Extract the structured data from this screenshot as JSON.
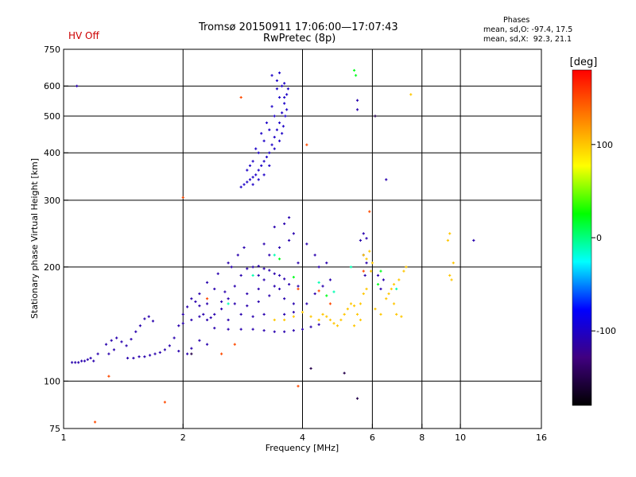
{
  "header": {
    "title_line1": "Tromsø 20150911 17:06:00—17:07:43",
    "title_line2": "RwPretec (8p)",
    "hv_status": "HV Off",
    "hv_color": "#cc0000"
  },
  "phases_info": {
    "title": "Phases",
    "line_o": "mean, sd,O: -97.4, 17.5",
    "line_x": "mean, sd,X:  92.3, 21.1"
  },
  "chart_data": {
    "type": "scatter",
    "xlabel": "Frequency [MHz]",
    "ylabel": "Stationary phase Virtual Height [km]",
    "x_scale": "log",
    "y_scale": "log",
    "xlim": [
      1,
      16
    ],
    "ylim": [
      75,
      750
    ],
    "x_ticks": [
      1,
      2,
      4,
      6,
      8,
      10,
      16
    ],
    "y_ticks": [
      75,
      100,
      200,
      300,
      400,
      500,
      600,
      750
    ],
    "x_grid": [
      2,
      4,
      6,
      8,
      10
    ],
    "y_grid": [
      100,
      200,
      300,
      400,
      500,
      600
    ],
    "grid": true,
    "colorbar": {
      "label": "[deg]",
      "range": [
        -180,
        180
      ],
      "ticks": [
        100,
        0,
        -100
      ],
      "stops": [
        "#ff0000",
        "#ff8000",
        "#ffff00",
        "#00ff00",
        "#00ffff",
        "#0000ff",
        "#400080",
        "#000000"
      ]
    },
    "series": [
      {
        "color_deg": -110,
        "points": [
          [
            1.05,
            112
          ],
          [
            1.07,
            112
          ],
          [
            1.09,
            112
          ],
          [
            1.11,
            113
          ],
          [
            1.13,
            113
          ],
          [
            1.15,
            114
          ],
          [
            1.17,
            115
          ],
          [
            1.19,
            113
          ],
          [
            1.22,
            118
          ],
          [
            1.28,
            125
          ],
          [
            1.32,
            128
          ],
          [
            1.36,
            130
          ],
          [
            1.4,
            127
          ],
          [
            1.44,
            124
          ],
          [
            1.48,
            129
          ],
          [
            1.52,
            135
          ],
          [
            1.56,
            140
          ],
          [
            1.6,
            146
          ],
          [
            1.64,
            148
          ],
          [
            1.68,
            144
          ],
          [
            1.3,
            118
          ],
          [
            1.34,
            121
          ],
          [
            1.45,
            115
          ],
          [
            1.5,
            115
          ],
          [
            1.55,
            116
          ],
          [
            1.6,
            116
          ],
          [
            1.65,
            117
          ],
          [
            1.7,
            118
          ],
          [
            1.75,
            119
          ],
          [
            1.8,
            121
          ],
          [
            1.85,
            124
          ],
          [
            1.9,
            130
          ],
          [
            1.95,
            140
          ],
          [
            2.0,
            150
          ],
          [
            2.05,
            157
          ],
          [
            2.1,
            165
          ],
          [
            2.15,
            162
          ],
          [
            2.2,
            158
          ],
          [
            2.25,
            150
          ],
          [
            2.3,
            145
          ],
          [
            2.35,
            147
          ],
          [
            2.4,
            150
          ],
          [
            2.5,
            155
          ],
          [
            2.6,
            165
          ],
          [
            2.7,
            178
          ],
          [
            2.8,
            190
          ],
          [
            2.9,
            198
          ],
          [
            3.0,
            200
          ],
          [
            3.1,
            201
          ],
          [
            3.2,
            198
          ],
          [
            3.3,
            196
          ],
          [
            3.4,
            192
          ],
          [
            3.5,
            190
          ],
          [
            3.6,
            186
          ],
          [
            2.4,
            138
          ],
          [
            2.6,
            137
          ],
          [
            2.8,
            137
          ],
          [
            3.0,
            137
          ],
          [
            3.2,
            136
          ],
          [
            3.4,
            135
          ],
          [
            3.6,
            135
          ],
          [
            3.8,
            136
          ],
          [
            4.0,
            137
          ],
          [
            4.2,
            139
          ],
          [
            4.4,
            141
          ],
          [
            2.5,
            162
          ],
          [
            2.7,
            160
          ],
          [
            2.9,
            158
          ],
          [
            3.1,
            162
          ],
          [
            3.3,
            168
          ],
          [
            3.5,
            175
          ],
          [
            3.7,
            180
          ],
          [
            3.9,
            178
          ],
          [
            2.2,
            128
          ],
          [
            2.3,
            125
          ],
          [
            2.1,
            122
          ],
          [
            1.95,
            120
          ],
          [
            2.05,
            118
          ],
          [
            2.2,
            170
          ],
          [
            2.3,
            182
          ],
          [
            2.45,
            192
          ],
          [
            2.6,
            205
          ],
          [
            2.75,
            215
          ],
          [
            2.85,
            225
          ],
          [
            2.65,
            200
          ],
          [
            2.55,
            172
          ],
          [
            3.2,
            185
          ],
          [
            3.4,
            178
          ],
          [
            3.6,
            165
          ],
          [
            3.8,
            160
          ],
          [
            3.3,
            215
          ],
          [
            3.5,
            225
          ],
          [
            3.7,
            235
          ],
          [
            3.8,
            245
          ],
          [
            3.2,
            230
          ],
          [
            3.4,
            255
          ],
          [
            3.6,
            260
          ],
          [
            3.7,
            270
          ],
          [
            5.6,
            235
          ],
          [
            5.7,
            245
          ],
          [
            5.8,
            238
          ],
          [
            5.7,
            215
          ],
          [
            5.8,
            205
          ],
          [
            5.75,
            190
          ],
          [
            6.2,
            190
          ],
          [
            6.4,
            185
          ],
          [
            6.3,
            175
          ],
          [
            3.6,
            150
          ],
          [
            3.8,
            152
          ],
          [
            4.1,
            160
          ],
          [
            4.3,
            170
          ],
          [
            4.5,
            178
          ],
          [
            4.7,
            185
          ],
          [
            4.4,
            200
          ],
          [
            4.6,
            205
          ],
          [
            2.0,
            142
          ],
          [
            2.1,
            145
          ],
          [
            2.2,
            148
          ],
          [
            3.0,
            148
          ],
          [
            3.2,
            150
          ],
          [
            2.9,
            170
          ],
          [
            3.1,
            175
          ],
          [
            4.3,
            215
          ],
          [
            4.1,
            230
          ],
          [
            3.9,
            205
          ],
          [
            3.1,
            190
          ],
          [
            2.8,
            150
          ],
          [
            2.6,
            145
          ],
          [
            2.4,
            175
          ],
          [
            2.3,
            160
          ],
          [
            6.5,
            340
          ],
          [
            5.5,
            520
          ],
          [
            5.5,
            550
          ],
          [
            10.8,
            235
          ],
          [
            1.08,
            600
          ]
        ]
      },
      {
        "color_deg": -100,
        "points": [
          [
            2.8,
            325
          ],
          [
            2.85,
            330
          ],
          [
            2.9,
            335
          ],
          [
            2.95,
            340
          ],
          [
            3.0,
            345
          ],
          [
            3.05,
            350
          ],
          [
            3.1,
            360
          ],
          [
            3.15,
            370
          ],
          [
            3.2,
            380
          ],
          [
            3.25,
            390
          ],
          [
            3.3,
            400
          ],
          [
            3.35,
            420
          ],
          [
            3.4,
            440
          ],
          [
            3.45,
            460
          ],
          [
            3.5,
            480
          ],
          [
            3.55,
            510
          ],
          [
            3.6,
            540
          ],
          [
            3.65,
            570
          ],
          [
            3.68,
            590
          ],
          [
            2.9,
            360
          ],
          [
            3.0,
            380
          ],
          [
            3.1,
            400
          ],
          [
            3.2,
            430
          ],
          [
            3.3,
            460
          ],
          [
            3.4,
            500
          ],
          [
            3.5,
            560
          ],
          [
            3.55,
            600
          ],
          [
            3.45,
            620
          ],
          [
            3.35,
            640
          ],
          [
            3.5,
            650
          ],
          [
            3.6,
            610
          ],
          [
            3.25,
            480
          ],
          [
            3.15,
            450
          ],
          [
            3.05,
            410
          ],
          [
            2.95,
            370
          ],
          [
            3.35,
            530
          ],
          [
            3.45,
            590
          ],
          [
            3.58,
            470
          ],
          [
            3.62,
            500
          ],
          [
            3.2,
            350
          ],
          [
            3.1,
            340
          ],
          [
            3.0,
            330
          ],
          [
            3.3,
            370
          ],
          [
            3.4,
            410
          ],
          [
            3.5,
            430
          ],
          [
            3.55,
            450
          ],
          [
            3.65,
            520
          ],
          [
            3.6,
            560
          ]
        ]
      },
      {
        "color_deg": 100,
        "points": [
          [
            4.5,
            150
          ],
          [
            4.6,
            148
          ],
          [
            4.7,
            145
          ],
          [
            4.8,
            142
          ],
          [
            4.9,
            140
          ],
          [
            5.0,
            145
          ],
          [
            5.1,
            150
          ],
          [
            5.2,
            155
          ],
          [
            5.3,
            160
          ],
          [
            5.4,
            158
          ],
          [
            5.5,
            150
          ],
          [
            5.6,
            160
          ],
          [
            5.7,
            170
          ],
          [
            5.8,
            175
          ],
          [
            5.6,
            145
          ],
          [
            5.4,
            140
          ],
          [
            6.5,
            165
          ],
          [
            6.6,
            170
          ],
          [
            6.7,
            175
          ],
          [
            6.8,
            180
          ],
          [
            7.0,
            185
          ],
          [
            7.2,
            195
          ],
          [
            6.8,
            160
          ],
          [
            6.9,
            150
          ],
          [
            7.1,
            148
          ],
          [
            5.7,
            215
          ],
          [
            5.8,
            210
          ],
          [
            5.9,
            220
          ],
          [
            6.0,
            205
          ],
          [
            5.95,
            195
          ],
          [
            9.4,
            190
          ],
          [
            9.5,
            185
          ],
          [
            9.6,
            205
          ],
          [
            9.3,
            235
          ],
          [
            9.4,
            245
          ],
          [
            3.4,
            145
          ],
          [
            3.6,
            145
          ],
          [
            3.8,
            148
          ],
          [
            4.0,
            152
          ],
          [
            4.2,
            148
          ],
          [
            4.4,
            145
          ],
          [
            7.5,
            570
          ],
          [
            7.3,
            200
          ],
          [
            6.3,
            150
          ],
          [
            6.1,
            155
          ]
        ]
      },
      {
        "color_deg": 20,
        "points": [
          [
            5.4,
            660
          ],
          [
            5.45,
            640
          ],
          [
            3.5,
            210
          ],
          [
            4.6,
            168
          ],
          [
            6.3,
            195
          ],
          [
            6.2,
            180
          ],
          [
            3.8,
            188
          ]
        ]
      },
      {
        "color_deg": -10,
        "points": [
          [
            5.3,
            200
          ],
          [
            3.4,
            215
          ],
          [
            4.4,
            182
          ],
          [
            6.9,
            175
          ],
          [
            2.6,
            160
          ],
          [
            3.0,
            190
          ],
          [
            4.8,
            172
          ]
        ]
      },
      {
        "color_deg": 150,
        "points": [
          [
            2.8,
            560
          ],
          [
            2.0,
            305
          ],
          [
            4.1,
            420
          ],
          [
            5.9,
            280
          ],
          [
            2.5,
            118
          ],
          [
            1.8,
            88
          ],
          [
            1.2,
            78
          ],
          [
            1.3,
            103
          ],
          [
            3.9,
            97
          ],
          [
            5.7,
            195
          ],
          [
            4.7,
            160
          ],
          [
            3.9,
            175
          ],
          [
            2.3,
            165
          ],
          [
            2.7,
            125
          ],
          [
            4.4,
            173
          ]
        ]
      },
      {
        "color_deg": -150,
        "points": [
          [
            5.5,
            90
          ],
          [
            4.2,
            108
          ],
          [
            5.1,
            105
          ],
          [
            6.1,
            500
          ],
          [
            2.1,
            118
          ]
        ]
      }
    ]
  }
}
